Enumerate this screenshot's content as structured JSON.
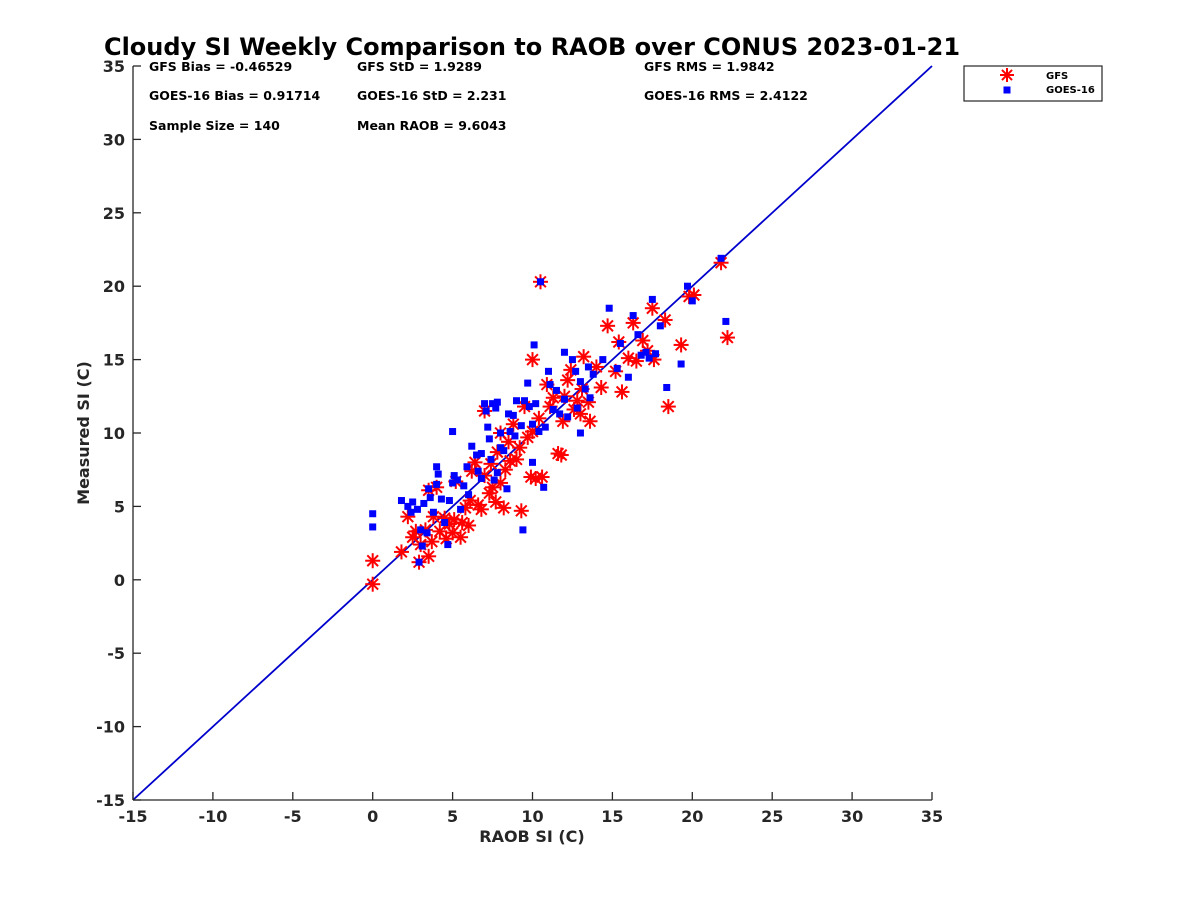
{
  "chart_data": {
    "type": "scatter",
    "title": "Cloudy SI Weekly Comparison to RAOB over CONUS 2023-01-21",
    "xlabel": "RAOB SI (C)",
    "ylabel": "Measured SI (C)",
    "xlim": [
      -15,
      35
    ],
    "ylim": [
      -15,
      35
    ],
    "xticks": [
      -15,
      -10,
      -5,
      0,
      5,
      10,
      15,
      20,
      25,
      30,
      35
    ],
    "yticks": [
      -15,
      -10,
      -5,
      0,
      5,
      10,
      15,
      20,
      25,
      30,
      35
    ],
    "grid": false,
    "legend_position": "top-right (outside plot)",
    "reference_line": {
      "x": [
        -15,
        35
      ],
      "y": [
        -15,
        35
      ],
      "color": "#0000cc"
    },
    "stats": [
      "GFS Bias = -0.46529",
      "GFS StD = 1.9289",
      "GFS RMS = 1.9842",
      "GOES-16 Bias = 0.91714",
      "GOES-16 StD = 2.231",
      "GOES-16 RMS = 2.4122",
      "Sample Size = 140",
      "Mean RAOB = 9.6043"
    ],
    "series": [
      {
        "name": "GFS",
        "marker": "asterisk",
        "color": "#ff0000",
        "points": [
          [
            0,
            -0.3
          ],
          [
            0,
            1.3
          ],
          [
            1.8,
            1.9
          ],
          [
            2.2,
            4.3
          ],
          [
            2.5,
            2.9
          ],
          [
            2.7,
            3.3
          ],
          [
            2.9,
            1.2
          ],
          [
            3.0,
            2.4
          ],
          [
            3.3,
            3.4
          ],
          [
            3.5,
            1.6
          ],
          [
            3.5,
            6.1
          ],
          [
            3.7,
            2.6
          ],
          [
            3.8,
            4.3
          ],
          [
            4.0,
            6.3
          ],
          [
            4.2,
            3.3
          ],
          [
            4.5,
            4.2
          ],
          [
            4.6,
            2.8
          ],
          [
            4.8,
            3.8
          ],
          [
            5.0,
            3.2
          ],
          [
            5.1,
            4.1
          ],
          [
            5.2,
            6.7
          ],
          [
            5.5,
            2.9
          ],
          [
            5.6,
            3.9
          ],
          [
            5.8,
            4.9
          ],
          [
            6.0,
            3.7
          ],
          [
            6.1,
            5.4
          ],
          [
            6.2,
            7.4
          ],
          [
            6.4,
            8.0
          ],
          [
            6.6,
            5.1
          ],
          [
            6.8,
            4.8
          ],
          [
            7.0,
            7.1
          ],
          [
            7.0,
            11.5
          ],
          [
            7.3,
            5.9
          ],
          [
            7.4,
            7.9
          ],
          [
            7.5,
            6.3
          ],
          [
            7.7,
            5.3
          ],
          [
            7.8,
            8.7
          ],
          [
            8.0,
            6.6
          ],
          [
            8.0,
            10.0
          ],
          [
            8.2,
            4.9
          ],
          [
            8.3,
            7.5
          ],
          [
            8.5,
            9.4
          ],
          [
            8.6,
            8.1
          ],
          [
            8.8,
            10.6
          ],
          [
            9.0,
            8.2
          ],
          [
            9.2,
            9.0
          ],
          [
            9.3,
            4.7
          ],
          [
            9.5,
            11.8
          ],
          [
            9.7,
            9.7
          ],
          [
            9.9,
            7.0
          ],
          [
            10.0,
            10.1
          ],
          [
            10.0,
            15.0
          ],
          [
            10.2,
            6.9
          ],
          [
            10.4,
            11.0
          ],
          [
            10.5,
            20.3
          ],
          [
            10.6,
            7.0
          ],
          [
            10.9,
            13.3
          ],
          [
            11.1,
            11.8
          ],
          [
            11.3,
            12.4
          ],
          [
            11.6,
            8.6
          ],
          [
            11.8,
            8.5
          ],
          [
            11.9,
            10.8
          ],
          [
            12.0,
            12.5
          ],
          [
            12.2,
            13.6
          ],
          [
            12.4,
            14.3
          ],
          [
            12.6,
            11.6
          ],
          [
            12.8,
            12.2
          ],
          [
            13.0,
            11.3
          ],
          [
            13.1,
            13.0
          ],
          [
            13.2,
            15.2
          ],
          [
            13.5,
            12.1
          ],
          [
            13.6,
            10.8
          ],
          [
            14.0,
            14.5
          ],
          [
            14.3,
            13.1
          ],
          [
            14.7,
            17.3
          ],
          [
            15.2,
            14.2
          ],
          [
            15.4,
            16.2
          ],
          [
            15.6,
            12.8
          ],
          [
            16.0,
            15.1
          ],
          [
            16.3,
            17.5
          ],
          [
            16.5,
            14.9
          ],
          [
            16.9,
            16.3
          ],
          [
            17.2,
            15.6
          ],
          [
            17.5,
            18.5
          ],
          [
            17.6,
            15.0
          ],
          [
            18.3,
            17.7
          ],
          [
            18.5,
            11.8
          ],
          [
            19.3,
            16.0
          ],
          [
            19.8,
            19.3
          ],
          [
            20.1,
            19.4
          ],
          [
            21.8,
            21.6
          ],
          [
            22.2,
            16.5
          ]
        ]
      },
      {
        "name": "GOES-16",
        "marker": "square",
        "color": "#0000ff",
        "points": [
          [
            0,
            4.5
          ],
          [
            0,
            3.6
          ],
          [
            1.8,
            5.4
          ],
          [
            2.2,
            5.0
          ],
          [
            2.4,
            4.6
          ],
          [
            2.5,
            5.3
          ],
          [
            2.8,
            4.8
          ],
          [
            2.9,
            1.2
          ],
          [
            3.0,
            3.4
          ],
          [
            3.1,
            2.3
          ],
          [
            3.2,
            5.2
          ],
          [
            3.4,
            3.2
          ],
          [
            3.5,
            6.2
          ],
          [
            3.6,
            5.6
          ],
          [
            3.8,
            4.6
          ],
          [
            4.0,
            7.7
          ],
          [
            4.0,
            6.5
          ],
          [
            4.1,
            7.2
          ],
          [
            4.3,
            5.5
          ],
          [
            4.5,
            3.9
          ],
          [
            4.7,
            2.4
          ],
          [
            4.8,
            5.4
          ],
          [
            5.0,
            10.1
          ],
          [
            5.0,
            6.6
          ],
          [
            5.1,
            7.1
          ],
          [
            5.3,
            6.8
          ],
          [
            5.5,
            4.8
          ],
          [
            5.7,
            6.4
          ],
          [
            5.9,
            7.7
          ],
          [
            6.0,
            5.8
          ],
          [
            6.2,
            9.1
          ],
          [
            6.5,
            8.5
          ],
          [
            6.6,
            7.4
          ],
          [
            6.8,
            6.9
          ],
          [
            6.8,
            8.6
          ],
          [
            7.0,
            12.0
          ],
          [
            7.1,
            11.5
          ],
          [
            7.2,
            10.4
          ],
          [
            7.3,
            9.6
          ],
          [
            7.4,
            8.2
          ],
          [
            7.5,
            12.0
          ],
          [
            7.6,
            6.8
          ],
          [
            7.7,
            11.7
          ],
          [
            7.8,
            12.1
          ],
          [
            7.8,
            7.3
          ],
          [
            8.0,
            10.0
          ],
          [
            8.0,
            9.0
          ],
          [
            8.2,
            8.8
          ],
          [
            8.4,
            6.2
          ],
          [
            8.5,
            11.3
          ],
          [
            8.6,
            10.1
          ],
          [
            8.8,
            11.2
          ],
          [
            8.9,
            9.8
          ],
          [
            9.0,
            12.2
          ],
          [
            9.3,
            10.5
          ],
          [
            9.4,
            3.4
          ],
          [
            9.5,
            12.2
          ],
          [
            9.7,
            13.4
          ],
          [
            9.8,
            11.8
          ],
          [
            10.0,
            8.0
          ],
          [
            10.0,
            10.6
          ],
          [
            10.1,
            16.0
          ],
          [
            10.2,
            12.0
          ],
          [
            10.4,
            10.1
          ],
          [
            10.5,
            20.3
          ],
          [
            10.7,
            6.3
          ],
          [
            10.8,
            10.4
          ],
          [
            11.0,
            14.2
          ],
          [
            11.1,
            13.3
          ],
          [
            11.3,
            11.6
          ],
          [
            11.5,
            12.9
          ],
          [
            11.7,
            11.3
          ],
          [
            12.0,
            15.5
          ],
          [
            12.0,
            12.3
          ],
          [
            12.2,
            11.1
          ],
          [
            12.5,
            15.0
          ],
          [
            12.7,
            14.2
          ],
          [
            12.8,
            11.7
          ],
          [
            13.0,
            13.5
          ],
          [
            13.0,
            10.0
          ],
          [
            13.3,
            13.0
          ],
          [
            13.5,
            14.5
          ],
          [
            13.6,
            12.4
          ],
          [
            13.8,
            14.0
          ],
          [
            14.4,
            15.0
          ],
          [
            14.8,
            18.5
          ],
          [
            15.3,
            14.4
          ],
          [
            15.5,
            16.1
          ],
          [
            16.0,
            13.8
          ],
          [
            16.3,
            18.0
          ],
          [
            16.6,
            16.7
          ],
          [
            16.8,
            15.3
          ],
          [
            17.1,
            15.5
          ],
          [
            17.3,
            15.1
          ],
          [
            17.5,
            19.1
          ],
          [
            17.7,
            15.4
          ],
          [
            18.0,
            17.3
          ],
          [
            18.4,
            13.1
          ],
          [
            19.3,
            14.7
          ],
          [
            19.7,
            20.0
          ],
          [
            20.0,
            19.0
          ],
          [
            21.8,
            21.9
          ],
          [
            22.1,
            17.6
          ]
        ]
      }
    ]
  }
}
